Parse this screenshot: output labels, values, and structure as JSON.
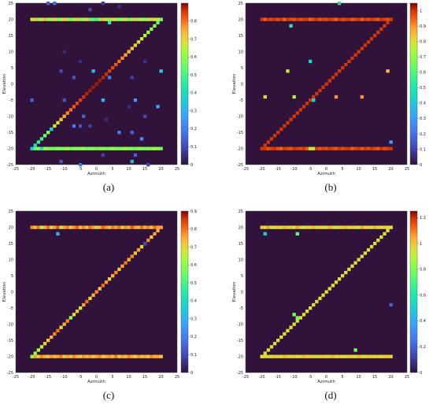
{
  "chart_data": [
    {
      "type": "heatmap",
      "caption": "(a)",
      "xlabel": "Azimuth",
      "ylabel": "Elevation",
      "xlim": [
        -25,
        25
      ],
      "ylim": [
        -25,
        25
      ],
      "x_ticks": [
        "-25",
        "-20",
        "-15",
        "-10",
        "-5",
        "0",
        "5",
        "10",
        "15",
        "20",
        "25"
      ],
      "y_ticks": [
        "25",
        "20",
        "15",
        "10",
        "5",
        "0",
        "-5",
        "-10",
        "-15",
        "-20",
        "-25"
      ],
      "colorbar": {
        "range": [
          0,
          0.9
        ],
        "ticks": [
          "0",
          "0.1",
          "0.2",
          "0.3",
          "0.4",
          "0.5",
          "0.6",
          "0.7",
          "0.8"
        ]
      },
      "background_value": 0.0,
      "top_edge": {
        "elevation": 20,
        "x_from": -20,
        "x_to": 20,
        "values": [
          0.68,
          0.72,
          0.58,
          0.66,
          0.74,
          0.61,
          0.64,
          0.7,
          0.57,
          0.63,
          0.72,
          0.66,
          0.55,
          0.62,
          0.71,
          0.58,
          0.64,
          0.69,
          0.52,
          0.56,
          0.48,
          0.61,
          0.73,
          0.66,
          0.59,
          0.7,
          0.64,
          0.57,
          0.62,
          0.68,
          0.55,
          0.63,
          0.72,
          0.6,
          0.66,
          0.58,
          0.64,
          0.71,
          0.65,
          0.69,
          0.62
        ]
      },
      "bottom_edge": {
        "elevation": -20,
        "x_from": -20,
        "x_to": 20,
        "values": [
          0.58,
          0.56,
          0.6,
          0.55,
          0.62,
          0.57,
          0.59,
          0.54,
          0.61,
          0.56,
          0.58,
          0.63,
          0.55,
          0.6,
          0.57,
          0.59,
          0.62,
          0.56,
          0.58,
          0.6,
          0.54,
          0.59,
          0.61,
          0.55,
          0.57,
          0.63,
          0.58,
          0.56,
          0.6,
          0.62,
          0.57,
          0.59,
          0.55,
          0.61,
          0.58,
          0.56,
          0.6,
          0.57,
          0.62,
          0.59,
          0.56
        ]
      },
      "diagonal": {
        "from": [
          -20,
          -20
        ],
        "to": [
          20,
          20
        ],
        "values": [
          0.35,
          0.4,
          0.46,
          0.5,
          0.55,
          0.58,
          0.62,
          0.66,
          0.7,
          0.72,
          0.75,
          0.78,
          0.8,
          0.82,
          0.84,
          0.85,
          0.86,
          0.87,
          0.88,
          0.88,
          0.88,
          0.88,
          0.87,
          0.86,
          0.85,
          0.84,
          0.82,
          0.8,
          0.78,
          0.76,
          0.74,
          0.72,
          0.7,
          0.68,
          0.66,
          0.64,
          0.62,
          0.6,
          0.58,
          0.56,
          0.54
        ]
      },
      "scattered": [
        {
          "x": -15,
          "y": 25,
          "v": 0.15
        },
        {
          "x": -13,
          "y": 25,
          "v": 0.18
        },
        {
          "x": -2,
          "y": 23,
          "v": 0.1
        },
        {
          "x": 2,
          "y": 25,
          "v": 0.08
        },
        {
          "x": 4,
          "y": 19,
          "v": 0.45
        },
        {
          "x": 7,
          "y": 24,
          "v": 0.05
        },
        {
          "x": -11,
          "y": 4,
          "v": 0.1
        },
        {
          "x": -7,
          "y": 2,
          "v": 0.12
        },
        {
          "x": -5,
          "y": 7,
          "v": 0.05
        },
        {
          "x": -1,
          "y": 4,
          "v": 0.32
        },
        {
          "x": 4,
          "y": 2,
          "v": 0.2
        },
        {
          "x": 11,
          "y": 2,
          "v": 0.08
        },
        {
          "x": 15,
          "y": 7,
          "v": 0.06
        },
        {
          "x": 20,
          "y": 4,
          "v": 0.35
        },
        {
          "x": -20,
          "y": -5,
          "v": 0.15
        },
        {
          "x": -10,
          "y": -5,
          "v": 0.12
        },
        {
          "x": 2,
          "y": -5,
          "v": 0.3
        },
        {
          "x": 12,
          "y": -5,
          "v": 0.25
        },
        {
          "x": 10,
          "y": -7,
          "v": 0.05
        },
        {
          "x": 19,
          "y": -7,
          "v": 0.28
        },
        {
          "x": -14,
          "y": -14,
          "v": 0.35
        },
        {
          "x": -7,
          "y": -13,
          "v": 0.18
        },
        {
          "x": -5,
          "y": -13,
          "v": 0.12
        },
        {
          "x": -4,
          "y": -10,
          "v": 0.15
        },
        {
          "x": -2,
          "y": -13,
          "v": 0.08
        },
        {
          "x": 3,
          "y": -11,
          "v": 0.05
        },
        {
          "x": 7,
          "y": -15,
          "v": 0.2
        },
        {
          "x": 11,
          "y": -15,
          "v": 0.15
        },
        {
          "x": 14,
          "y": -17,
          "v": 0.22
        },
        {
          "x": 15,
          "y": -10,
          "v": 0.1
        },
        {
          "x": -11,
          "y": -24,
          "v": 0.12
        },
        {
          "x": -5,
          "y": -25,
          "v": 0.2
        },
        {
          "x": 2,
          "y": -22,
          "v": 0.08
        },
        {
          "x": 12,
          "y": -22,
          "v": 0.15
        },
        {
          "x": 11,
          "y": -24,
          "v": 0.3
        },
        {
          "x": 16,
          "y": -25,
          "v": 0.1
        },
        {
          "x": -17,
          "y": -20,
          "v": 0.4
        },
        {
          "x": -10,
          "y": 10,
          "v": 0.05
        }
      ]
    },
    {
      "type": "heatmap",
      "caption": "(b)",
      "xlabel": "Azimuth",
      "ylabel": "Elevation",
      "xlim": [
        -25,
        25
      ],
      "ylim": [
        -25,
        25
      ],
      "x_ticks": [
        "-25",
        "-20",
        "-15",
        "-10",
        "-5",
        "0",
        "5",
        "10",
        "15",
        "20",
        "25"
      ],
      "y_ticks": [
        "25",
        "20",
        "15",
        "10",
        "5",
        "0",
        "-5",
        "-10",
        "-15",
        "-20",
        "-25"
      ],
      "colorbar": {
        "range": [
          0,
          1.05
        ],
        "ticks": [
          "0",
          "0.1",
          "0.2",
          "0.3",
          "0.4",
          "0.5",
          "0.6",
          "0.7",
          "0.8",
          "0.9",
          "1"
        ]
      },
      "background_value": 0.0,
      "top_edge": {
        "elevation": 20,
        "x_from": -20,
        "x_to": 20,
        "values": [
          1.0,
          0.95,
          1.0,
          0.98,
          1.0,
          0.97,
          1.0,
          0.95,
          1.0,
          0.98,
          0.96,
          1.0,
          0.97,
          0.99,
          1.0,
          0.95,
          0.98,
          1.0,
          0.96,
          0.99,
          0.97,
          1.0,
          0.98,
          0.95,
          1.0,
          0.97,
          0.99,
          1.0,
          0.96,
          0.98,
          1.0,
          0.95,
          0.99,
          0.97,
          1.0,
          0.98,
          0.96,
          1.0,
          0.99,
          0.97,
          1.0
        ]
      },
      "bottom_edge": {
        "elevation": -20,
        "x_from": -20,
        "x_to": 20,
        "values": [
          0.98,
          1.0,
          0.96,
          0.99,
          1.0,
          0.97,
          0.95,
          1.0,
          0.98,
          0.96,
          1.0,
          0.99,
          0.97,
          1.0,
          0.95,
          0.98,
          0.8,
          1.0,
          0.96,
          0.99,
          0.97,
          1.0,
          0.98,
          0.96,
          1.0,
          0.97,
          0.99,
          1.0,
          0.95,
          0.98,
          1.0,
          0.96,
          0.99,
          0.97,
          1.0,
          0.98,
          0.95,
          1.0,
          0.97,
          0.99,
          1.0
        ]
      },
      "diagonal": {
        "from": [
          -20,
          -20
        ],
        "to": [
          20,
          20
        ],
        "values": [
          1.0,
          1.0,
          1.0,
          1.0,
          1.0,
          1.0,
          1.0,
          1.0,
          1.0,
          1.0,
          1.0,
          1.0,
          1.0,
          1.0,
          1.0,
          1.0,
          1.0,
          1.0,
          1.0,
          1.0,
          1.0,
          1.0,
          1.0,
          1.0,
          1.0,
          1.0,
          1.0,
          1.0,
          1.0,
          1.0,
          1.0,
          1.0,
          1.0,
          1.0,
          1.0,
          1.0,
          1.0,
          1.0,
          1.0,
          1.0,
          1.0
        ]
      },
      "scattered": [
        {
          "x": 4,
          "y": 25,
          "v": 0.55
        },
        {
          "x": -11,
          "y": 18,
          "v": 0.5
        },
        {
          "x": -5,
          "y": 7,
          "v": 0.45
        },
        {
          "x": -12,
          "y": 4,
          "v": 0.75
        },
        {
          "x": 19,
          "y": 4,
          "v": 0.85
        },
        {
          "x": -19,
          "y": -4,
          "v": 0.8
        },
        {
          "x": -10,
          "y": -4,
          "v": 0.75
        },
        {
          "x": -4,
          "y": -5,
          "v": 0.45
        },
        {
          "x": 3,
          "y": -4,
          "v": 0.9
        },
        {
          "x": 11,
          "y": -4,
          "v": 0.9
        },
        {
          "x": 20,
          "y": -18,
          "v": 0.3
        },
        {
          "x": -5,
          "y": -20,
          "v": 0.75
        }
      ]
    },
    {
      "type": "heatmap",
      "caption": "(c)",
      "xlabel": "Azimuth",
      "ylabel": "Elevation",
      "xlim": [
        -25,
        25
      ],
      "ylim": [
        -25,
        25
      ],
      "x_ticks": [
        "-25",
        "-20",
        "-15",
        "-10",
        "-5",
        "0",
        "5",
        "10",
        "15",
        "20",
        "25"
      ],
      "y_ticks": [
        "25",
        "20",
        "15",
        "10",
        "5",
        "0",
        "-5",
        "-10",
        "-15",
        "-20",
        "-25"
      ],
      "colorbar": {
        "range": [
          0,
          0.9
        ],
        "ticks": [
          "0",
          "0.1",
          "0.2",
          "0.3",
          "0.4",
          "0.5",
          "0.6",
          "0.7",
          "0.8",
          "0.9"
        ]
      },
      "background_value": 0.0,
      "top_edge": {
        "elevation": 20,
        "x_from": -20,
        "x_to": 20,
        "values": [
          0.78,
          0.72,
          0.8,
          0.66,
          0.74,
          0.8,
          0.7,
          0.76,
          0.82,
          0.68,
          0.75,
          0.79,
          0.7,
          0.77,
          0.81,
          0.73,
          0.78,
          0.72,
          0.8,
          0.76,
          0.69,
          0.74,
          0.81,
          0.77,
          0.72,
          0.79,
          0.75,
          0.8,
          0.71,
          0.78,
          0.74,
          0.82,
          0.76,
          0.73,
          0.8,
          0.75,
          0.78,
          0.72,
          0.8,
          0.76,
          0.78
        ]
      },
      "bottom_edge": {
        "elevation": -20,
        "x_from": -20,
        "x_to": 20,
        "values": [
          0.72,
          0.76,
          0.7,
          0.78,
          0.74,
          0.71,
          0.77,
          0.73,
          0.75,
          0.79,
          0.7,
          0.76,
          0.72,
          0.78,
          0.74,
          0.71,
          0.77,
          0.73,
          0.76,
          0.72,
          0.75,
          0.78,
          0.7,
          0.74,
          0.77,
          0.73,
          0.79,
          0.71,
          0.76,
          0.72,
          0.78,
          0.74,
          0.7,
          0.77,
          0.73,
          0.75,
          0.71,
          0.78,
          0.74,
          0.76,
          0.72
        ]
      },
      "diagonal": {
        "from": [
          -20,
          -20
        ],
        "to": [
          20,
          20
        ],
        "values": [
          0.6,
          0.62,
          0.64,
          0.66,
          0.7,
          0.72,
          0.74,
          0.78,
          0.8,
          0.7,
          0.74,
          0.78,
          0.6,
          0.68,
          0.72,
          0.66,
          0.76,
          0.8,
          0.7,
          0.74,
          0.78,
          0.72,
          0.8,
          0.76,
          0.7,
          0.74,
          0.78,
          0.72,
          0.76,
          0.8,
          0.74,
          0.78,
          0.72,
          0.76,
          0.7,
          0.74,
          0.78,
          0.72,
          0.76,
          0.74,
          0.76
        ]
      },
      "scattered": [
        {
          "x": -12,
          "y": 18,
          "v": 0.3
        },
        {
          "x": 15,
          "y": 15,
          "v": 0.1
        }
      ]
    },
    {
      "type": "heatmap",
      "caption": "(d)",
      "xlabel": "Azimuth",
      "ylabel": "Elevation",
      "xlim": [
        -25,
        25
      ],
      "ylim": [
        -25,
        25
      ],
      "x_ticks": [
        "-25",
        "-20",
        "-15",
        "-10",
        "-5",
        "0",
        "5",
        "10",
        "15",
        "20",
        "25"
      ],
      "y_ticks": [
        "25",
        "20",
        "15",
        "10",
        "5",
        "0",
        "-5",
        "-10",
        "-15",
        "-20",
        "-25"
      ],
      "colorbar": {
        "range": [
          0,
          1.25
        ],
        "ticks": [
          "0",
          "0.2",
          "0.4",
          "0.6",
          "0.8",
          "1",
          "1.2"
        ]
      },
      "background_value": 0.0,
      "top_edge": {
        "elevation": 20,
        "x_from": -20,
        "x_to": 20,
        "values": [
          1.0,
          0.95,
          1.05,
          0.9,
          0.98,
          1.0,
          0.92,
          1.02,
          0.96,
          1.0,
          0.94,
          1.05,
          0.98,
          0.9,
          1.0,
          0.96,
          1.02,
          0.92,
          1.0,
          0.97,
          0.94,
          1.03,
          0.98,
          0.92,
          1.0,
          0.96,
          1.02,
          0.95,
          1.0,
          0.98,
          0.93,
          1.04,
          0.97,
          1.0,
          0.94,
          1.02,
          0.98,
          0.95,
          1.0,
          0.97,
          1.0
        ]
      },
      "bottom_edge": {
        "elevation": -20,
        "x_from": -20,
        "x_to": 20,
        "values": [
          1.0,
          0.96,
          0.98,
          0.94,
          1.0,
          0.97,
          0.95,
          1.02,
          0.98,
          0.96,
          1.0,
          0.94,
          0.98,
          1.02,
          0.96,
          1.0,
          0.97,
          0.95,
          0.99,
          1.0,
          0.96,
          0.98,
          1.02,
          0.95,
          1.0,
          0.97,
          0.94,
          1.0,
          0.98,
          0.96,
          1.02,
          0.97,
          0.95,
          1.0,
          0.98,
          0.96,
          1.0,
          0.94,
          0.98,
          1.0,
          0.97
        ]
      },
      "diagonal": {
        "from": [
          -20,
          -20
        ],
        "to": [
          20,
          20
        ],
        "values": [
          0.95,
          0.95,
          0.95,
          0.95,
          0.95,
          0.95,
          0.95,
          0.95,
          0.95,
          0.95,
          0.95,
          0.95,
          0.95,
          0.95,
          0.95,
          0.95,
          0.95,
          0.95,
          0.95,
          0.95,
          0.95,
          0.95,
          0.95,
          0.95,
          0.95,
          0.95,
          0.95,
          0.95,
          0.95,
          0.95,
          0.95,
          0.95,
          0.95,
          0.95,
          0.95,
          0.95,
          0.95,
          0.95,
          0.95,
          0.95,
          0.95
        ]
      },
      "scattered": [
        {
          "x": -19,
          "y": 18,
          "v": 0.5
        },
        {
          "x": -9,
          "y": 18,
          "v": 0.75
        },
        {
          "x": -10,
          "y": -7,
          "v": 0.8
        },
        {
          "x": -9,
          "y": -8,
          "v": 0.75
        },
        {
          "x": 9,
          "y": -18,
          "v": 0.8
        },
        {
          "x": 20,
          "y": -4,
          "v": 0.2
        }
      ]
    }
  ]
}
